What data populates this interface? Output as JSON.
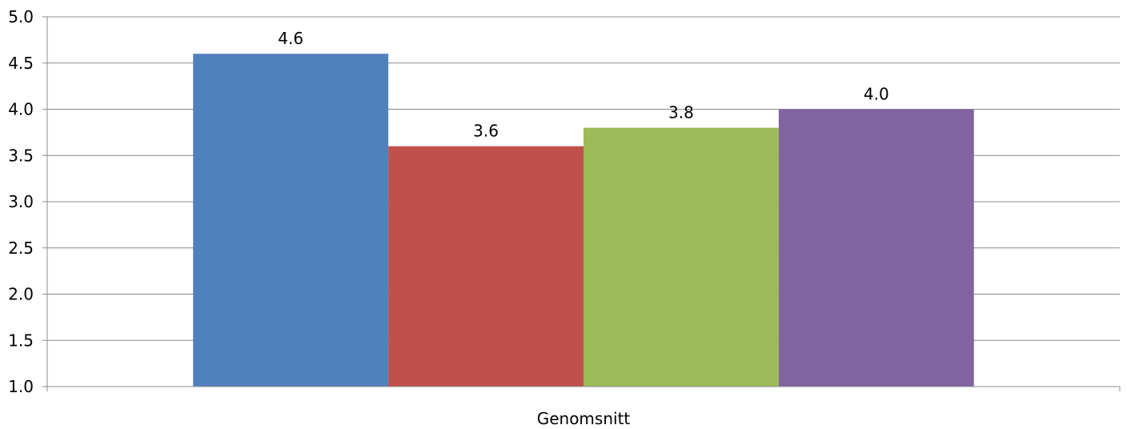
{
  "chart_data": {
    "type": "bar",
    "categories": [
      "Genomsnitt"
    ],
    "series": [
      {
        "values": [
          4.6
        ],
        "color": "#4F81BD"
      },
      {
        "values": [
          3.6
        ],
        "color": "#C0504D"
      },
      {
        "values": [
          3.8
        ],
        "color": "#9BBB59"
      },
      {
        "values": [
          4.0
        ],
        "color": "#8064A2"
      }
    ],
    "data_labels": [
      "4.6",
      "3.6",
      "3.8",
      "4.0"
    ],
    "ylim": [
      1.0,
      5.0
    ],
    "yticks": [
      "1.0",
      "1.5",
      "2.0",
      "2.5",
      "3.0",
      "3.5",
      "4.0",
      "4.5",
      "5.0"
    ],
    "grid": true,
    "legend": "none"
  }
}
